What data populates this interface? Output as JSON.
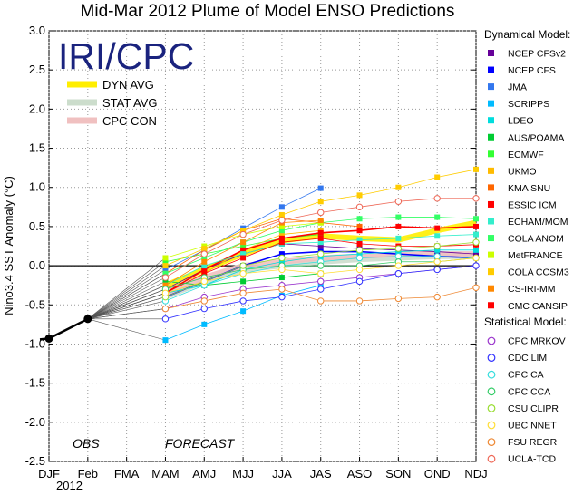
{
  "chart_data": {
    "type": "line",
    "title": "Mid-Mar 2012 Plume of Model ENSO Predictions",
    "ylabel": "Nino3.4 SST Anomaly (°C)",
    "xlabel": "",
    "year_label": "2012",
    "categories": [
      "DJF",
      "Feb",
      "FMA",
      "MAM",
      "AMJ",
      "MJJ",
      "JJA",
      "JAS",
      "ASO",
      "SON",
      "OND",
      "NDJ"
    ],
    "ylim": [
      -2.5,
      3.0
    ],
    "yticks": [
      "3.0",
      "2.5",
      "2.0",
      "1.5",
      "1.0",
      "0.5",
      "0.0",
      "-0.5",
      "-1.0",
      "-1.5",
      "-2.0",
      "-2.5"
    ],
    "grid": true,
    "logo_text": "IRI/CPC",
    "obs_label": "OBS",
    "forecast_label": "FORECAST",
    "observed": {
      "x": [
        "DJF",
        "Feb"
      ],
      "values": [
        -0.93,
        -0.68
      ]
    },
    "averages": [
      {
        "name": "DYN AVG",
        "color": "#ffee00",
        "values": [
          -0.25,
          -0.05,
          0.15,
          0.32,
          0.38,
          0.35,
          0.33,
          0.45,
          0.55
        ]
      },
      {
        "name": "STAT AVG",
        "color": "#ccddcc",
        "values": [
          -0.4,
          -0.2,
          -0.05,
          0.0,
          0.05,
          0.08,
          0.1,
          0.12,
          0.12
        ]
      },
      {
        "name": "CPC CON",
        "color": "#f0c0c0",
        "values": [
          -0.35,
          -0.15,
          0.0,
          0.05,
          0.1,
          0.12,
          0.15,
          0.15,
          0.15
        ]
      }
    ],
    "dynamical_title": "Dynamical Model:",
    "statistical_title": "Statistical Model:",
    "dynamical": [
      {
        "name": "NCEP CFSv2",
        "color": "#660099",
        "values": [
          -0.3,
          -0.05,
          0.15,
          0.28,
          0.25,
          0.22,
          0.2,
          0.18,
          0.15
        ]
      },
      {
        "name": "NCEP CFS",
        "color": "#0000ff",
        "values": [
          -0.4,
          -0.2,
          0.0,
          0.15,
          0.18,
          0.18,
          0.15,
          0.12,
          0.1
        ]
      },
      {
        "name": "JMA",
        "color": "#3377ee",
        "values": [
          -0.05,
          0.2,
          0.48,
          0.75,
          0.99,
          null,
          null,
          null,
          null
        ]
      },
      {
        "name": "SCRIPPS",
        "color": "#00bbff",
        "values": [
          -0.95,
          -0.75,
          -0.58,
          -0.38,
          -0.25,
          null,
          null,
          null,
          null
        ]
      },
      {
        "name": "LDEO",
        "color": "#00dddd",
        "values": [
          -0.35,
          -0.25,
          -0.05,
          0.05,
          0.12,
          0.15,
          0.18,
          0.2,
          0.2
        ]
      },
      {
        "name": "AUS/POAMA",
        "color": "#00cc33",
        "values": [
          -0.2,
          -0.25,
          -0.2,
          -0.15,
          -0.1,
          null,
          null,
          null,
          null
        ]
      },
      {
        "name": "ECMWF",
        "color": "#33ff33",
        "values": [
          0.05,
          0.15,
          0.25,
          0.35,
          0.4,
          null,
          null,
          null,
          null
        ]
      },
      {
        "name": "UKMO",
        "color": "#ffbb00",
        "values": [
          -0.3,
          -0.1,
          0.2,
          0.4,
          0.45,
          null,
          null,
          null,
          null
        ]
      },
      {
        "name": "KMA SNU",
        "color": "#ff6600",
        "values": [
          -0.1,
          0.2,
          0.45,
          0.6,
          0.55,
          0.5,
          null,
          null,
          null
        ]
      },
      {
        "name": "ESSIC ICM",
        "color": "#ff0000",
        "values": [
          -0.35,
          -0.05,
          0.2,
          0.35,
          0.42,
          0.45,
          0.5,
          0.48,
          0.5
        ]
      },
      {
        "name": "ECHAM/MOM",
        "color": "#33eecc",
        "values": [
          -0.25,
          0.0,
          0.15,
          0.28,
          0.3,
          0.33,
          0.35,
          0.38,
          0.4
        ]
      },
      {
        "name": "COLA ANOM",
        "color": "#33ff66",
        "values": [
          -0.1,
          0.1,
          0.3,
          0.45,
          0.55,
          0.6,
          0.62,
          0.62,
          0.6
        ]
      },
      {
        "name": "MetFRANCE",
        "color": "#ccff00",
        "values": [
          0.1,
          0.25,
          0.4,
          0.5,
          0.55,
          null,
          null,
          null,
          null
        ]
      },
      {
        "name": "COLA CCSM3",
        "color": "#ffcc00",
        "values": [
          0.0,
          0.22,
          0.45,
          0.65,
          0.82,
          0.9,
          1.0,
          1.13,
          1.23
        ]
      },
      {
        "name": "CS-IRI-MM",
        "color": "#ff8800",
        "values": [
          -0.25,
          0.05,
          0.3,
          0.55,
          0.58,
          null,
          null,
          null,
          null
        ]
      },
      {
        "name": "CMC CANSIP",
        "color": "#ff0000",
        "values": [
          -0.35,
          -0.1,
          0.1,
          0.3,
          0.35,
          0.28,
          0.25,
          0.25,
          0.27
        ]
      }
    ],
    "statistical": [
      {
        "name": "CPC MRKOV",
        "color": "#9933cc",
        "values": [
          -0.55,
          -0.4,
          -0.3,
          -0.25,
          -0.2,
          -0.15,
          -0.1,
          -0.05,
          0.0
        ]
      },
      {
        "name": "CDC LIM",
        "color": "#3333ff",
        "values": [
          -0.68,
          -0.55,
          -0.45,
          -0.4,
          -0.3,
          -0.2,
          -0.1,
          -0.05,
          0.0
        ]
      },
      {
        "name": "CPC CA",
        "color": "#33dddd",
        "values": [
          -0.45,
          -0.25,
          -0.1,
          0.0,
          0.05,
          0.1,
          0.12,
          0.12,
          0.1
        ]
      },
      {
        "name": "CPC CCA",
        "color": "#33cc66",
        "values": [
          -0.3,
          -0.15,
          -0.05,
          0.0,
          0.0,
          0.0,
          0.05,
          0.05,
          0.1
        ]
      },
      {
        "name": "CSU CLIPR",
        "color": "#99dd33",
        "values": [
          -0.4,
          -0.2,
          0.0,
          0.1,
          0.15,
          0.2,
          0.22,
          0.25,
          0.3
        ]
      },
      {
        "name": "UBC NNET",
        "color": "#ffdd33",
        "values": [
          -0.35,
          -0.2,
          -0.1,
          -0.05,
          -0.1,
          -0.05,
          0.0,
          0.05,
          0.1
        ]
      },
      {
        "name": "FSU REGR",
        "color": "#ee8833",
        "values": [
          -0.55,
          -0.45,
          -0.35,
          -0.3,
          -0.45,
          -0.45,
          -0.42,
          -0.4,
          -0.28
        ]
      },
      {
        "name": "UCLA-TCD",
        "color": "#ee6655",
        "values": [
          -0.15,
          0.15,
          0.4,
          0.58,
          0.68,
          0.75,
          0.82,
          0.86,
          0.86
        ]
      }
    ]
  }
}
